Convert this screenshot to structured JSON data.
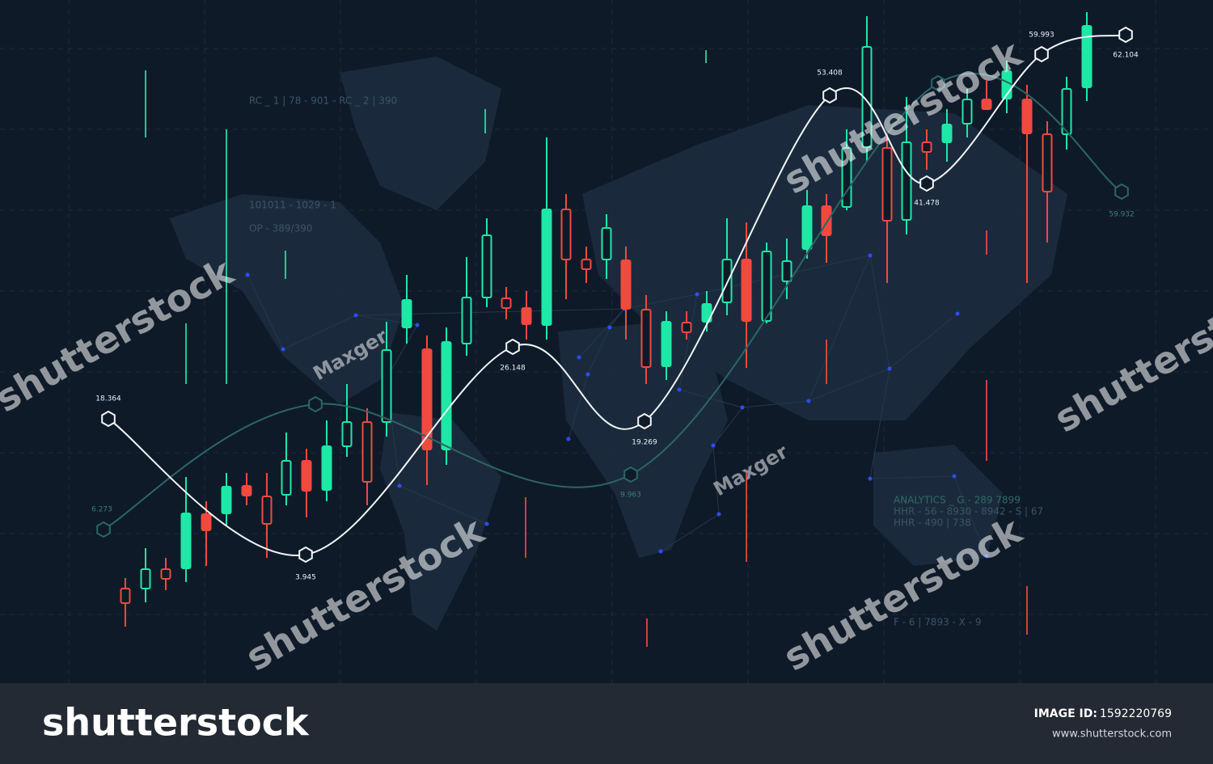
{
  "annotations": {
    "codes": [
      "RC _ 1 | 78 - 901 - RC _ 2 | 390",
      "101011 - 1029 - 1",
      "OP - 389/390",
      "ANALYTICS _ G - 289 7899",
      "HHR - 56 - 8930 - 8942 - S | 67",
      "HHR - 490 | 738",
      "F - 6 | 7893 - X - 9"
    ]
  },
  "main_line": {
    "point_labels": [
      "18.364",
      "3.945",
      "26.148",
      "19.269",
      "53.408",
      "41.478",
      "59.993",
      "62.104"
    ]
  },
  "secondary_line": {
    "point_labels": [
      "6.273",
      "9.963",
      "59.932"
    ]
  },
  "watermark": {
    "brand": "shutterstock",
    "author": "Maxger"
  },
  "footer": {
    "logo": "shutterstock",
    "image_id_label": "IMAGE ID:",
    "image_id": "1592220769",
    "url": "www.shutterstock.com"
  }
}
